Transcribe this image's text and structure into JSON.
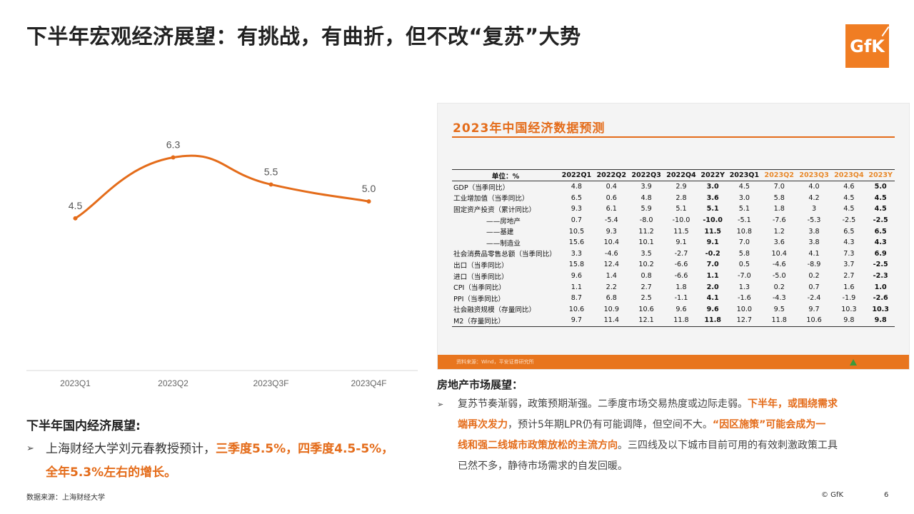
{
  "title": "下半年宏观经济展望：有挑战，有曲折，但不改“复苏”大势",
  "logo_text": "GfK",
  "chart_data": {
    "type": "line",
    "categories": [
      "2023Q1",
      "2023Q2",
      "2023Q3F",
      "2023Q4F"
    ],
    "values": [
      4.5,
      6.3,
      5.5,
      5.0
    ],
    "value_labels": [
      "4.5",
      "6.3",
      "5.5",
      "5.0"
    ],
    "ylim": [
      0,
      8
    ],
    "grid": false,
    "color": "#e46c1a"
  },
  "table_panel": {
    "title": "2023年中国经济数据预测",
    "headers": [
      "单位：%",
      "2022Q1",
      "2022Q2",
      "2022Q3",
      "2022Q4",
      "2022Y",
      "2023Q1",
      "2023Q2",
      "2023Q3",
      "2023Q4",
      "2023Y"
    ],
    "rows": [
      [
        "GDP（当季同比）",
        "4.8",
        "0.4",
        "3.9",
        "2.9",
        "3.0",
        "4.5",
        "7.0",
        "4.0",
        "4.6",
        "5.0"
      ],
      [
        "工业增加值（当季同比）",
        "6.5",
        "0.6",
        "4.8",
        "2.8",
        "3.6",
        "3.0",
        "5.8",
        "4.2",
        "4.5",
        "4.5"
      ],
      [
        "固定资产投资（累计同比）",
        "9.3",
        "6.1",
        "5.9",
        "5.1",
        "5.1",
        "5.1",
        "1.8",
        "3",
        "4.5",
        "4.5"
      ],
      [
        "——房地产",
        "0.7",
        "-5.4",
        "-8.0",
        "-10.0",
        "-10.0",
        "-5.1",
        "-7.6",
        "-5.3",
        "-2.5",
        "-2.5"
      ],
      [
        "——基建",
        "10.5",
        "9.3",
        "11.2",
        "11.5",
        "11.5",
        "10.8",
        "1.2",
        "3.8",
        "6.5",
        "6.5"
      ],
      [
        "——制造业",
        "15.6",
        "10.4",
        "10.1",
        "9.1",
        "9.1",
        "7.0",
        "3.6",
        "3.8",
        "4.3",
        "4.3"
      ],
      [
        "社会消费品零售总额（当季同比）",
        "3.3",
        "-4.6",
        "3.5",
        "-2.7",
        "-0.2",
        "5.8",
        "10.4",
        "4.1",
        "7.3",
        "6.9"
      ],
      [
        "出口（当季同比）",
        "15.8",
        "12.4",
        "10.2",
        "-6.6",
        "7.0",
        "0.5",
        "-4.6",
        "-8.9",
        "3.7",
        "-2.5"
      ],
      [
        "进口（当季同比）",
        "9.6",
        "1.4",
        "0.8",
        "-6.6",
        "1.1",
        "-7.0",
        "-5.0",
        "0.2",
        "2.7",
        "-2.3"
      ],
      [
        "CPI（当季同比）",
        "1.1",
        "2.2",
        "2.7",
        "1.8",
        "2.0",
        "1.3",
        "0.2",
        "0.7",
        "1.6",
        "1.0"
      ],
      [
        "PPI（当季同比）",
        "8.7",
        "6.8",
        "2.5",
        "-1.1",
        "4.1",
        "-1.6",
        "-4.3",
        "-2.4",
        "-1.9",
        "-2.6"
      ],
      [
        "社会融资规模（存量同比）",
        "10.6",
        "10.9",
        "10.6",
        "9.6",
        "9.6",
        "10.0",
        "9.5",
        "9.7",
        "10.3",
        "10.3"
      ],
      [
        "M2（存量同比）",
        "9.7",
        "11.4",
        "12.1",
        "11.8",
        "11.8",
        "12.7",
        "11.8",
        "10.6",
        "9.8",
        "9.8"
      ]
    ],
    "source": "资料来源：Wind，平安证券研究所"
  },
  "left_text": {
    "heading": "下半年国内经济展望:",
    "bullet": "➢",
    "line1_plain": "上海财经大学刘元春教授预计，",
    "line1_hi": "三季度5.5%，四季度4.5-5%，",
    "line2_hi": "全年5.3%左右的增长。"
  },
  "right_text": {
    "heading": "房地产市场展望：",
    "bullet": "➢",
    "l1_plain": "复苏节奏渐弱，政策预期渐强。二季度市场交易热度或边际走弱。",
    "l1_hi": "下半年，或围绕需求",
    "l2_hi": "端再次发力",
    "l2_plain": "，预计5年期LPR仍有可能调降，但空间不大。",
    "l2_hi2": "“因区施策”可能会成为一",
    "l3_hi": "线和强二线城市政策放松的主流方向",
    "l3_plain": "。三四线及以下城市目前可用的有效刺激政策工具",
    "l4_plain": "已然不多，静待市场需求的自发回暖。"
  },
  "footer": {
    "source": "数据来源：上海财经大学",
    "copyright": "© GfK",
    "page": "6"
  }
}
